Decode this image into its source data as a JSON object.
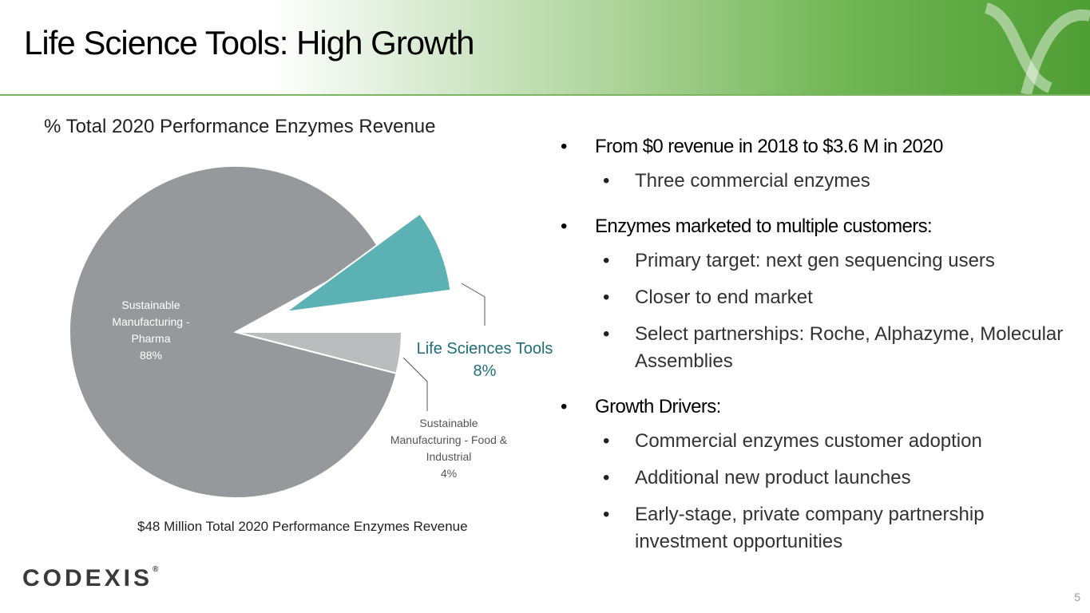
{
  "slide": {
    "title": "Life Science Tools:  High Growth",
    "page_number": "5",
    "logo_text": "CODEXIS",
    "logo_mark": "®",
    "header_colors": {
      "gradient_start": "#ffffff",
      "gradient_end": "#4f9e34"
    }
  },
  "chart_data": {
    "type": "pie",
    "title": "% Total 2020 Performance Enzymes Revenue",
    "footnote": "$48 Million Total 2020 Performance Enzymes Revenue",
    "slices": [
      {
        "name": "Sustainable Manufacturing - Pharma",
        "value": 88,
        "label_lines": [
          "Sustainable",
          "Manufacturing -",
          "Pharma",
          "88%"
        ],
        "color": "#97989c",
        "exploded": false
      },
      {
        "name": "Life Sciences Tools",
        "value": 8,
        "label_lines": [
          "Life Sciences Tools",
          "8%"
        ],
        "color": "#5cb1b4",
        "exploded": true
      },
      {
        "name": "Sustainable Manufacturing - Food & Industrial",
        "value": 4,
        "label_lines": [
          "Sustainable",
          "Manufacturing - Food &",
          "Industrial",
          "4%"
        ],
        "color": "#bbbcbe",
        "exploded": false
      }
    ]
  },
  "bullets": [
    {
      "text": "From $0 revenue in 2018 to $3.6 M in 2020",
      "children": [
        "Three commercial enzymes"
      ]
    },
    {
      "text": "Enzymes marketed to multiple customers:",
      "children": [
        "Primary target: next gen sequencing users",
        "Closer to end market",
        "Select partnerships: Roche, Alphazyme, Molecular Assemblies"
      ]
    },
    {
      "text": "Growth Drivers:",
      "children": [
        "Commercial enzymes customer adoption",
        "Additional new product launches",
        "Early-stage, private company partnership investment opportunities"
      ]
    }
  ]
}
